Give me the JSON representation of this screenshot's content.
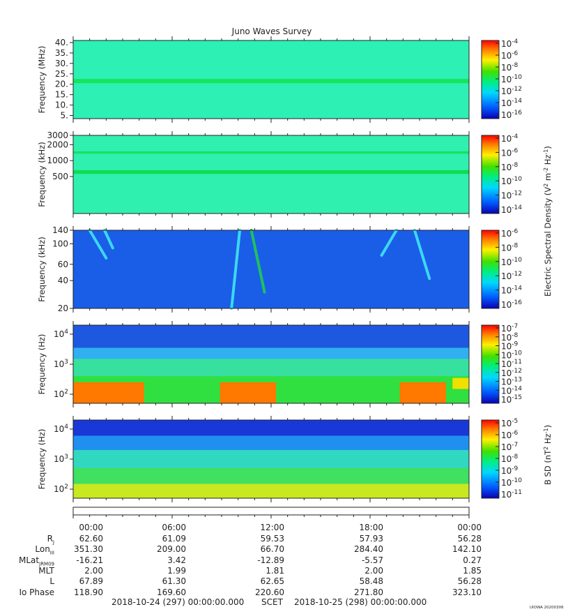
{
  "chart_data": [
    {
      "type": "heatmap",
      "title": "Juno Waves Survey",
      "ylabel": "Frequency (MHz)",
      "ylim": [
        3.5,
        41
      ],
      "yscale": "linear",
      "yticks": [
        {
          "v": 5,
          "label": "5."
        },
        {
          "v": 10,
          "label": "10."
        },
        {
          "v": 15,
          "label": "15."
        },
        {
          "v": 20,
          "label": "20."
        },
        {
          "v": 25,
          "label": "25."
        },
        {
          "v": 30,
          "label": "30."
        },
        {
          "v": 35,
          "label": "35."
        },
        {
          "v": 40,
          "label": "40."
        }
      ],
      "background_color": "#2cf0b4",
      "bands": [
        {
          "y0": 20.5,
          "y1": 22.5,
          "color": "#16e45a"
        }
      ],
      "colorbar": {
        "colors": [
          "#0a00b8",
          "#0060ff",
          "#00d8ff",
          "#00ee80",
          "#40e000",
          "#fff000",
          "#ff8000",
          "#ff0000"
        ],
        "ticks": [
          {
            "base": "10",
            "exp": "-4"
          },
          {
            "base": "10",
            "exp": "-6"
          },
          {
            "base": "10",
            "exp": "-8"
          },
          {
            "base": "10",
            "exp": "-10"
          },
          {
            "base": "10",
            "exp": "-12"
          },
          {
            "base": "10",
            "exp": "-14"
          },
          {
            "base": "10",
            "exp": "-16"
          }
        ]
      }
    },
    {
      "type": "heatmap",
      "ylabel": "Frequency (kHz)",
      "ylim": [
        100,
        3000
      ],
      "yscale": "log",
      "yticks": [
        {
          "v": 3000,
          "label": "3000"
        },
        {
          "v": 2000,
          "label": "2000"
        },
        {
          "v": 1000,
          "label": "1000"
        },
        {
          "v": 500,
          "label": "500"
        }
      ],
      "background_color": "#30f0b0",
      "bands": [
        {
          "y0": 1350,
          "y1": 1500,
          "color": "#18e060"
        },
        {
          "y0": 560,
          "y1": 660,
          "color": "#10dc50"
        }
      ],
      "colorbar": {
        "colors": [
          "#0a00b8",
          "#0060ff",
          "#00d8ff",
          "#00ee80",
          "#40e000",
          "#fff000",
          "#ff8000",
          "#ff0000"
        ],
        "ticks": [
          {
            "base": "10",
            "exp": "-4"
          },
          {
            "base": "10",
            "exp": "-6"
          },
          {
            "base": "10",
            "exp": "-8"
          },
          {
            "base": "10",
            "exp": "-10"
          },
          {
            "base": "10",
            "exp": "-12"
          },
          {
            "base": "10",
            "exp": "-14"
          }
        ]
      }
    },
    {
      "type": "heatmap",
      "ylabel": "Frequency (kHz)",
      "ylim": [
        20,
        140
      ],
      "yscale": "log",
      "yticks": [
        {
          "v": 140,
          "label": "140"
        },
        {
          "v": 100,
          "label": "100"
        },
        {
          "v": 60,
          "label": "60"
        },
        {
          "v": 40,
          "label": "40"
        },
        {
          "v": 20,
          "label": "20"
        }
      ],
      "background_color": "#1a5ee8",
      "arcs": [
        {
          "t": [
            1.0,
            2.0
          ],
          "y": [
            140,
            70
          ],
          "color": "#3cd8f0"
        },
        {
          "t": [
            1.9,
            2.4
          ],
          "y": [
            140,
            90
          ],
          "color": "#3cd8f0"
        },
        {
          "t": [
            10.1,
            9.6
          ],
          "y": [
            140,
            20
          ],
          "color": "#3cd8f0"
        },
        {
          "t": [
            10.8,
            11.6
          ],
          "y": [
            140,
            30
          ],
          "color": "#20c060"
        },
        {
          "t": [
            19.6,
            18.7
          ],
          "y": [
            140,
            75
          ],
          "color": "#3cd8f0"
        },
        {
          "t": [
            20.7,
            21.6
          ],
          "y": [
            140,
            42
          ],
          "color": "#3cd8f0"
        }
      ],
      "colorbar": {
        "colors": [
          "#0a00b8",
          "#0060ff",
          "#00d8ff",
          "#00ee80",
          "#40e000",
          "#fff000",
          "#ff8000",
          "#ff0000"
        ],
        "ticks": [
          {
            "base": "10",
            "exp": "-6"
          },
          {
            "base": "10",
            "exp": "-8"
          },
          {
            "base": "10",
            "exp": "-10"
          },
          {
            "base": "10",
            "exp": "-12"
          },
          {
            "base": "10",
            "exp": "-14"
          },
          {
            "base": "10",
            "exp": "-16"
          }
        ]
      }
    },
    {
      "type": "heatmap",
      "ylabel": "Frequency (Hz)",
      "ylim": [
        50,
        20000
      ],
      "yscale": "log",
      "yticks": [
        {
          "v": 10000,
          "base": "10",
          "exp": "4"
        },
        {
          "v": 1000,
          "base": "10",
          "exp": "3"
        },
        {
          "v": 100,
          "base": "10",
          "exp": "2"
        }
      ],
      "background_color": "#3cd8b4",
      "bands": [
        {
          "y0": 3500,
          "y1": 20000,
          "color": "#1e58e0"
        },
        {
          "y0": 1500,
          "y1": 3500,
          "color": "#30b0f0"
        },
        {
          "y0": 400,
          "y1": 1500,
          "color": "#38e0a0"
        },
        {
          "y0": 50,
          "y1": 400,
          "color": "#30e040"
        }
      ],
      "hot_segments": [
        {
          "t0": 0,
          "t1": 4.3,
          "y0": 50,
          "y1": 250,
          "color": "#ff7800"
        },
        {
          "t0": 8.9,
          "t1": 12.3,
          "y0": 50,
          "y1": 250,
          "color": "#ff7800"
        },
        {
          "t0": 19.8,
          "t1": 22.6,
          "y0": 50,
          "y1": 250,
          "color": "#ff7800"
        },
        {
          "t0": 23.0,
          "t1": 24,
          "y0": 150,
          "y1": 350,
          "color": "#f0e000"
        }
      ],
      "colorbar": {
        "colors": [
          "#0a00b8",
          "#0060ff",
          "#00d8ff",
          "#00ee80",
          "#40e000",
          "#fff000",
          "#ff8000",
          "#ff0000"
        ],
        "ticks": [
          {
            "base": "10",
            "exp": "-7"
          },
          {
            "base": "10",
            "exp": "-8"
          },
          {
            "base": "10",
            "exp": "-9"
          },
          {
            "base": "10",
            "exp": "-10"
          },
          {
            "base": "10",
            "exp": "-11"
          },
          {
            "base": "10",
            "exp": "-12"
          },
          {
            "base": "10",
            "exp": "-13"
          },
          {
            "base": "10",
            "exp": "-14"
          },
          {
            "base": "10",
            "exp": "-15"
          }
        ]
      }
    },
    {
      "type": "heatmap",
      "ylabel": "Frequency (Hz)",
      "ylim": [
        50,
        20000
      ],
      "yscale": "log",
      "yticks": [
        {
          "v": 10000,
          "base": "10",
          "exp": "4"
        },
        {
          "v": 1000,
          "base": "10",
          "exp": "3"
        },
        {
          "v": 100,
          "base": "10",
          "exp": "2"
        }
      ],
      "background_color": "#40e050",
      "bands": [
        {
          "y0": 6000,
          "y1": 20000,
          "color": "#1838d8"
        },
        {
          "y0": 2000,
          "y1": 6000,
          "color": "#2090f0"
        },
        {
          "y0": 500,
          "y1": 2000,
          "color": "#30d8c0"
        },
        {
          "y0": 150,
          "y1": 500,
          "color": "#40e060"
        },
        {
          "y0": 50,
          "y1": 150,
          "color": "#c8e820"
        }
      ],
      "colorbar": {
        "colors": [
          "#0a00b8",
          "#0060ff",
          "#00d8ff",
          "#00ee80",
          "#40e000",
          "#fff000",
          "#ff8000",
          "#ff0000"
        ],
        "ticks": [
          {
            "base": "10",
            "exp": "-5"
          },
          {
            "base": "10",
            "exp": "-6"
          },
          {
            "base": "10",
            "exp": "-7"
          },
          {
            "base": "10",
            "exp": "-8"
          },
          {
            "base": "10",
            "exp": "-9"
          },
          {
            "base": "10",
            "exp": "-10"
          },
          {
            "base": "10",
            "exp": "-11"
          }
        ]
      }
    }
  ],
  "colorbar_labels": {
    "electric": {
      "prefix": "Electric Spectral Density (V",
      "sup1": "2",
      "mid": " m",
      "sup2": "-2",
      "mid2": " Hz",
      "sup3": "-1",
      "suffix": ")"
    },
    "magnetic": {
      "prefix": "B SD (nT",
      "sup1": "2",
      "mid": " Hz",
      "sup2": "-1",
      "suffix": ")"
    }
  },
  "time_axis": {
    "t_range_hours": [
      0,
      24
    ],
    "tick_hours": [
      0,
      6,
      12,
      18,
      24
    ],
    "tick_labels": [
      "00:00",
      "06:00",
      "12:00",
      "18:00",
      "00:00"
    ]
  },
  "ephemeris": {
    "rows": [
      {
        "label": "R",
        "sub": "J",
        "values": [
          "62.60",
          "61.09",
          "59.53",
          "57.93",
          "56.28"
        ]
      },
      {
        "label": "Lon",
        "sub": "III",
        "values": [
          "351.30",
          "209.00",
          "66.70",
          "284.40",
          "142.10"
        ]
      },
      {
        "label": "MLat",
        "sub": "JRM09",
        "values": [
          "-16.21",
          "3.42",
          "-12.89",
          "-5.57",
          "0.27"
        ]
      },
      {
        "label": "MLT",
        "sub": "",
        "values": [
          "2.00",
          "1.99",
          "1.81",
          "2.00",
          "1.85"
        ]
      },
      {
        "label": "L",
        "sub": "",
        "values": [
          "67.89",
          "61.30",
          "62.65",
          "58.48",
          "56.28"
        ]
      },
      {
        "label": "Io Phase",
        "sub": "",
        "values": [
          "118.90",
          "169.60",
          "220.60",
          "271.80",
          "323.10"
        ]
      }
    ]
  },
  "footer": {
    "start": "2018-10-24 (297) 00:00:00.000",
    "mid": "SCET",
    "end": "2018-10-25 (298) 00:00:00.000",
    "credit": "UIOWA 20200306"
  }
}
